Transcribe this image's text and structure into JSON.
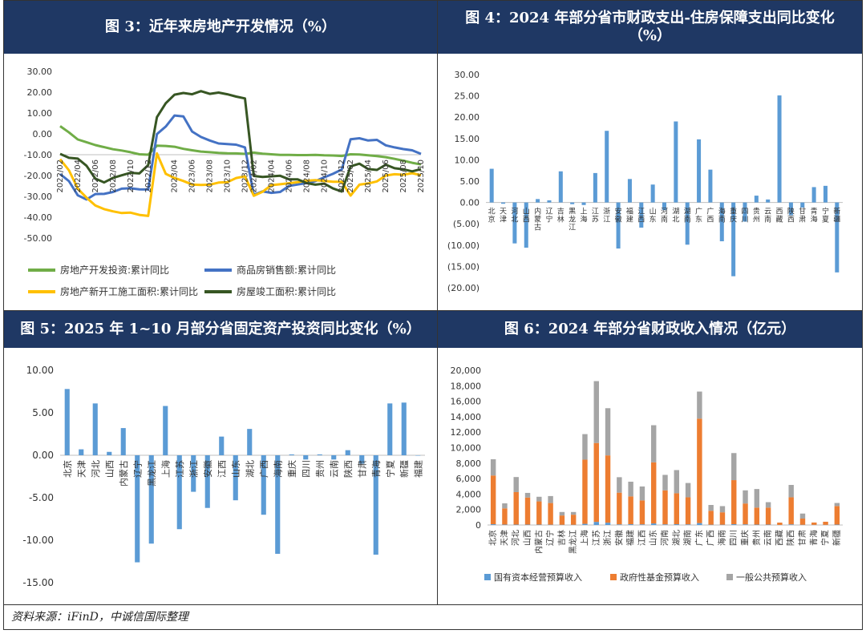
{
  "panels": {
    "p3": {
      "title": "图 3：近年来房地产开发情况（%）"
    },
    "p4": {
      "title_line1": "图 4：2024 年部分省市财政支出-住房保障支出同比变化",
      "title_line2": "（%）"
    },
    "p5": {
      "title": "图 5：2025 年 1~10 月部分省固定资产投资同比变化（%）"
    },
    "p6": {
      "title": "图 6：2024 年部分省财政收入情况（亿元）"
    }
  },
  "source": "资料来源：iFinD，中诚信国际整理",
  "colors": {
    "header": "#1f3864",
    "green": "#70ad47",
    "blue": "#4472c4",
    "yellow": "#ffc000",
    "darkgreen": "#375623",
    "bar": "#5b9bd5",
    "orange": "#ed7d31",
    "gray": "#a5a5a5"
  },
  "chart_data": [
    {
      "id": "p3",
      "type": "line",
      "x": [
        "2022/02",
        "2022/03",
        "2022/04",
        "2022/05",
        "2022/06",
        "2022/07",
        "2022/08",
        "2022/09",
        "2022/10",
        "2022/11",
        "2022/12",
        "2023/02",
        "2023/03",
        "2023/04",
        "2023/05",
        "2023/06",
        "2023/07",
        "2023/08",
        "2023/09",
        "2023/10",
        "2023/11",
        "2023/12",
        "2024/02",
        "2024/03",
        "2024/04",
        "2024/05",
        "2024/06",
        "2024/07",
        "2024/08",
        "2024/09",
        "2024/10",
        "2024/11",
        "2024/12",
        "2025/02",
        "2025/03",
        "2025/04",
        "2025/05",
        "2025/06",
        "2025/07",
        "2025/08",
        "2025/09",
        "2025/10"
      ],
      "xticks": [
        "2022/02",
        "2022/04",
        "2022/06",
        "2022/08",
        "2022/10",
        "2022/12",
        "2023/04",
        "2023/06",
        "2023/08",
        "2023/10",
        "2023/12",
        "2024/02",
        "2024/04",
        "2024/06",
        "2024/08",
        "2024/10",
        "2024/12",
        "2025/02",
        "2025/04",
        "2025/06",
        "2025/08",
        "2025/10"
      ],
      "yticks": [
        "30.00",
        "20.00",
        "10.00",
        "0.00",
        "-10.00",
        "-20.00",
        "-30.00",
        "-40.00",
        "-50.00"
      ],
      "ylim": [
        -50,
        30
      ],
      "series": [
        {
          "name": "房地产开发投资:累计同比",
          "color": "#70ad47",
          "values": [
            3.7,
            0.7,
            -2.7,
            -4.0,
            -5.4,
            -6.4,
            -7.4,
            -8.0,
            -8.8,
            -9.8,
            -10.0,
            -5.7,
            -5.8,
            -6.2,
            -7.2,
            -7.9,
            -8.5,
            -8.8,
            -9.1,
            -9.3,
            -9.4,
            -9.6,
            -9.0,
            -9.5,
            -9.8,
            -10.1,
            -10.1,
            -10.2,
            -10.2,
            -10.1,
            -10.3,
            -10.4,
            -10.6,
            -9.8,
            -9.9,
            -10.3,
            -10.7,
            -11.2,
            -12.0,
            -12.9,
            -13.9,
            -14.7
          ]
        },
        {
          "name": "商品房销售额:累计同比",
          "color": "#4472c4",
          "values": [
            -19.3,
            -22.7,
            -29.5,
            -31.5,
            -28.9,
            -28.8,
            -27.9,
            -26.3,
            -26.1,
            -26.6,
            -26.7,
            -0.1,
            3.5,
            8.8,
            8.4,
            1.1,
            -1.5,
            -3.2,
            -4.6,
            -4.9,
            -5.2,
            -6.5,
            -29.3,
            -27.6,
            -28.3,
            -27.9,
            -25.0,
            -24.3,
            -23.6,
            -22.7,
            -20.9,
            -19.2,
            -17.1,
            -2.6,
            -2.1,
            -3.2,
            -2.9,
            -5.5,
            -6.5,
            -7.3,
            -7.9,
            -9.6
          ]
        },
        {
          "name": "房地产新开工施工面积:累计同比",
          "color": "#ffc000",
          "values": [
            -12.2,
            -17.5,
            -26.3,
            -30.6,
            -34.4,
            -36.1,
            -37.2,
            -38.0,
            -37.8,
            -38.9,
            -39.4,
            -9.4,
            -19.2,
            -21.2,
            -22.6,
            -24.3,
            -24.5,
            -24.4,
            -23.4,
            -23.2,
            -21.2,
            -20.4,
            -29.7,
            -27.8,
            -24.6,
            -24.2,
            -23.7,
            -23.2,
            -22.5,
            -22.2,
            -22.6,
            -23.0,
            -23.0,
            -29.6,
            -24.4,
            -23.8,
            -22.8,
            -20.0,
            -19.4,
            -19.6,
            -18.9,
            -19.8
          ]
        },
        {
          "name": "房屋竣工面积:累计同比",
          "color": "#375623",
          "values": [
            -9.6,
            -11.5,
            -11.9,
            -15.3,
            -21.5,
            -23.3,
            -21.1,
            -19.9,
            -18.7,
            -19.0,
            -15.0,
            8.0,
            14.7,
            18.8,
            19.6,
            19.0,
            20.5,
            19.2,
            19.8,
            19.0,
            17.9,
            17.0,
            -20.2,
            -20.7,
            -20.4,
            -20.1,
            -21.8,
            -21.8,
            -23.6,
            -24.4,
            -23.9,
            -26.2,
            -27.7,
            -15.6,
            -14.3,
            -16.9,
            -17.3,
            -14.8,
            -16.5,
            -17.0,
            -18.0,
            -16.9
          ]
        }
      ]
    },
    {
      "id": "p4",
      "type": "bar",
      "categories": [
        "北京",
        "天津",
        "河北",
        "山西",
        "内蒙古",
        "辽宁",
        "吉林",
        "黑龙江",
        "上海",
        "江苏",
        "浙江",
        "安徽",
        "福建",
        "江西",
        "山东",
        "河南",
        "湖北",
        "湖南",
        "广东",
        "广西",
        "海南",
        "重庆",
        "四川",
        "贵州",
        "云南",
        "西藏",
        "陕西",
        "甘肃",
        "青海",
        "宁夏",
        "新疆"
      ],
      "values": [
        7.9,
        -0.3,
        -9.6,
        -10.6,
        0.8,
        0.5,
        7.3,
        -0.4,
        -0.6,
        6.9,
        16.8,
        -10.8,
        5.5,
        -5.9,
        4.2,
        -1.8,
        19.0,
        -9.9,
        14.8,
        7.7,
        -9.1,
        -17.3,
        -4.5,
        1.6,
        0.7,
        25.1,
        -3.0,
        -1.2,
        3.6,
        3.9,
        -16.4
      ],
      "yticks": [
        "30.00",
        "25.00",
        "20.00",
        "15.00",
        "10.00",
        "5.00",
        "0.00",
        "(5.00)",
        "(10.00)",
        "(15.00)",
        "(20.00)"
      ],
      "ylim": [
        -20,
        30
      ]
    },
    {
      "id": "p5",
      "type": "bar",
      "categories": [
        "北京",
        "天津",
        "河北",
        "山西",
        "内蒙古",
        "辽宁",
        "黑龙江",
        "上海",
        "江苏",
        "浙江",
        "安徽",
        "江西",
        "山东",
        "湖北",
        "广西",
        "海南",
        "重庆",
        "四川",
        "贵州",
        "云南",
        "陕西",
        "甘肃",
        "青海",
        "宁夏",
        "新疆",
        "福建"
      ],
      "values": [
        7.8,
        0.7,
        6.1,
        0.4,
        3.2,
        -12.6,
        -10.4,
        5.8,
        -8.7,
        -4.3,
        -6.2,
        2.2,
        -5.3,
        3.1,
        -7.0,
        -11.6,
        0.1,
        -0.5,
        0.1,
        -0.5,
        0.6,
        -1.0,
        -11.7,
        6.1,
        6.2,
        0.0
      ],
      "yticks": [
        "10.00",
        "5.00",
        "0.00",
        "-5.00",
        "-10.00",
        "-15.00"
      ],
      "ylim": [
        -15,
        10
      ]
    },
    {
      "id": "p6",
      "type": "bar",
      "stacked": true,
      "categories": [
        "北京",
        "天津",
        "河北",
        "山西",
        "内蒙古",
        "辽宁",
        "吉林",
        "黑龙江",
        "上海",
        "江苏",
        "浙江",
        "安徽",
        "福建",
        "江西",
        "山东",
        "河南",
        "湖北",
        "湖南",
        "广东",
        "广西",
        "海南",
        "四川",
        "重庆",
        "贵州",
        "云南",
        "西藏",
        "陕西",
        "甘肃",
        "青海",
        "宁夏",
        "新疆"
      ],
      "series": [
        {
          "name": "国有资本经营预算收入",
          "color": "#5b9bd5",
          "values": [
            100,
            50,
            50,
            50,
            50,
            40,
            30,
            30,
            150,
            400,
            300,
            80,
            100,
            80,
            200,
            80,
            100,
            80,
            250,
            40,
            40,
            100,
            80,
            50,
            50,
            10,
            80,
            30,
            20,
            20,
            50
          ]
        },
        {
          "name": "政府性基金预算收入",
          "color": "#ed7d31",
          "values": [
            6300,
            2100,
            4200,
            3500,
            3000,
            2800,
            1200,
            1300,
            8300,
            10200,
            8700,
            4100,
            3600,
            3100,
            7900,
            4400,
            4000,
            3500,
            13500,
            1800,
            1600,
            5700,
            2700,
            2200,
            2200,
            300,
            3500,
            800,
            300,
            400,
            2400
          ]
        },
        {
          "name": "一般公共预算收入",
          "color": "#a5a5a5",
          "values": [
            2100,
            650,
            1950,
            600,
            600,
            900,
            450,
            350,
            3300,
            8000,
            6100,
            2000,
            1900,
            1800,
            4800,
            2000,
            3000,
            1850,
            3500,
            750,
            800,
            3500,
            1700,
            2400,
            700,
            0,
            1600,
            650,
            0,
            0,
            400
          ]
        }
      ],
      "yticks": [
        "20,000",
        "18,000",
        "16,000",
        "14,000",
        "12,000",
        "10,000",
        "8,000",
        "6,000",
        "4,000",
        "2,000",
        "0"
      ],
      "ylim": [
        0,
        20000
      ]
    }
  ]
}
